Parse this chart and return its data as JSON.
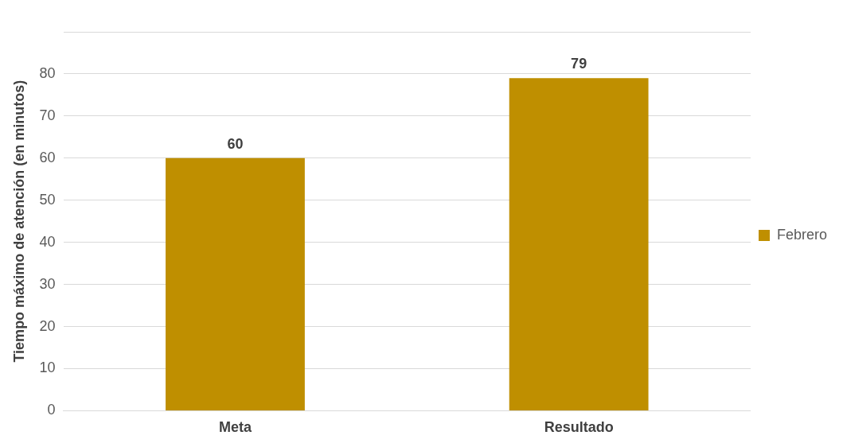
{
  "chart_data": {
    "type": "bar",
    "ylabel": "Tiempo máximo de atención (en minutos)",
    "categories": [
      "Meta",
      "Resultado"
    ],
    "series": [
      {
        "name": "Febrero",
        "color": "#bf8f00",
        "values": [
          60,
          79
        ]
      }
    ],
    "ylim": [
      0,
      90
    ],
    "yticks": [
      0,
      10,
      20,
      30,
      40,
      50,
      60,
      70,
      80,
      {
        "value": 90,
        "label": null
      }
    ],
    "grid": "y",
    "legend": "right",
    "data_labels": true
  }
}
